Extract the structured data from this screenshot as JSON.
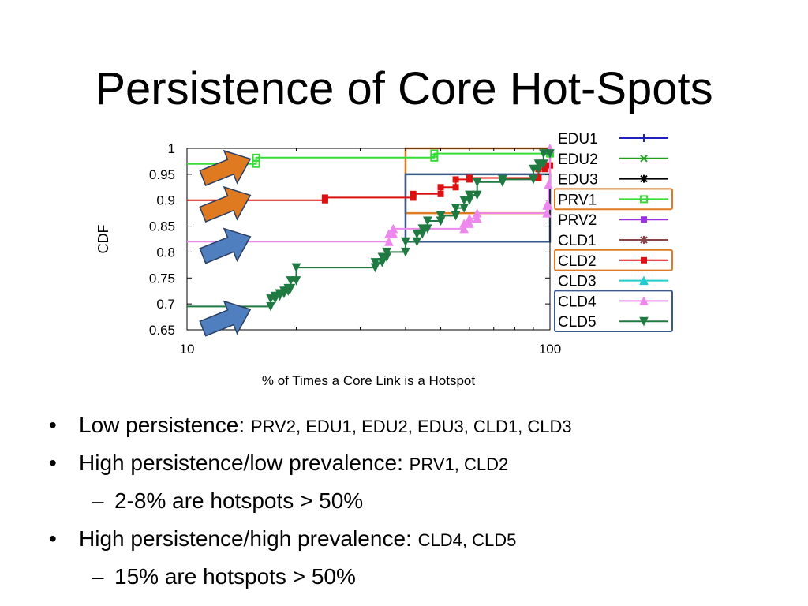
{
  "slide": {
    "title": "Persistence of Core Hot-Spots"
  },
  "chart_data": {
    "type": "line",
    "title": "",
    "xlabel": "% of Times a Core Link is a Hotspot",
    "ylabel": "CDF",
    "xscale": "log",
    "xlim": [
      10,
      100
    ],
    "ylim": [
      0.65,
      1.0
    ],
    "xticks": [
      "10",
      "100"
    ],
    "yticks": [
      "0.65",
      "0.7",
      "0.75",
      "0.8",
      "0.85",
      "0.9",
      "0.95",
      "1"
    ],
    "grid": false,
    "legend_position": "right",
    "series": [
      {
        "name": "EDU1",
        "color": "#2020c0",
        "marker": "plus",
        "points": []
      },
      {
        "name": "EDU2",
        "color": "#20a020",
        "marker": "x",
        "points": []
      },
      {
        "name": "EDU3",
        "color": "#000000",
        "marker": "star",
        "points": []
      },
      {
        "name": "PRV1",
        "color": "#33dd33",
        "marker": "square-open",
        "points": [
          [
            10,
            0.97
          ],
          [
            15.5,
            0.97
          ],
          [
            15.5,
            0.982
          ],
          [
            48,
            0.982
          ],
          [
            48,
            0.99
          ],
          [
            100,
            0.99
          ]
        ]
      },
      {
        "name": "PRV2",
        "color": "#9933dd",
        "marker": "square",
        "points": []
      },
      {
        "name": "CLD1",
        "color": "#884444",
        "marker": "star",
        "points": []
      },
      {
        "name": "CLD2",
        "color": "#dd1111",
        "marker": "square",
        "points": [
          [
            10,
            0.9
          ],
          [
            24,
            0.9
          ],
          [
            24,
            0.905
          ],
          [
            42,
            0.905
          ],
          [
            42,
            0.912
          ],
          [
            50,
            0.912
          ],
          [
            50,
            0.925
          ],
          [
            55,
            0.925
          ],
          [
            55,
            0.94
          ],
          [
            60,
            0.94
          ],
          [
            60,
            0.943
          ],
          [
            93,
            0.943
          ],
          [
            93,
            0.96
          ],
          [
            97,
            0.96
          ],
          [
            97,
            0.967
          ],
          [
            100,
            0.967
          ]
        ]
      },
      {
        "name": "CLD3",
        "color": "#22cccc",
        "marker": "triangle-up",
        "points": []
      },
      {
        "name": "CLD4",
        "color": "#ee88ee",
        "marker": "triangle-up",
        "points": [
          [
            10,
            0.82
          ],
          [
            36,
            0.82
          ],
          [
            36,
            0.835
          ],
          [
            37,
            0.835
          ],
          [
            37,
            0.845
          ],
          [
            58,
            0.845
          ],
          [
            58,
            0.855
          ],
          [
            60,
            0.855
          ],
          [
            60,
            0.865
          ],
          [
            63,
            0.865
          ],
          [
            63,
            0.875
          ],
          [
            98,
            0.875
          ],
          [
            98,
            0.89
          ],
          [
            99,
            0.89
          ],
          [
            99,
            0.93
          ],
          [
            100,
            0.93
          ],
          [
            100,
            1.0
          ]
        ]
      },
      {
        "name": "CLD5",
        "color": "#1e7a40",
        "marker": "triangle-down",
        "points": [
          [
            10,
            0.695
          ],
          [
            17,
            0.695
          ],
          [
            17,
            0.71
          ],
          [
            17.5,
            0.71
          ],
          [
            17.5,
            0.715
          ],
          [
            18,
            0.715
          ],
          [
            18,
            0.72
          ],
          [
            18.5,
            0.72
          ],
          [
            18.5,
            0.725
          ],
          [
            19,
            0.725
          ],
          [
            19,
            0.73
          ],
          [
            19.3,
            0.73
          ],
          [
            19.3,
            0.745
          ],
          [
            20,
            0.745
          ],
          [
            20,
            0.77
          ],
          [
            33,
            0.77
          ],
          [
            33,
            0.78
          ],
          [
            34.5,
            0.78
          ],
          [
            34.5,
            0.79
          ],
          [
            35.5,
            0.79
          ],
          [
            35.5,
            0.8
          ],
          [
            40,
            0.8
          ],
          [
            40,
            0.82
          ],
          [
            43,
            0.82
          ],
          [
            43,
            0.835
          ],
          [
            44.5,
            0.835
          ],
          [
            44.5,
            0.845
          ],
          [
            46,
            0.845
          ],
          [
            46,
            0.86
          ],
          [
            50,
            0.86
          ],
          [
            50,
            0.87
          ],
          [
            55,
            0.87
          ],
          [
            55,
            0.885
          ],
          [
            58,
            0.885
          ],
          [
            58,
            0.9
          ],
          [
            60,
            0.9
          ],
          [
            60,
            0.91
          ],
          [
            63,
            0.91
          ],
          [
            63,
            0.935
          ],
          [
            74,
            0.935
          ],
          [
            74,
            0.94
          ],
          [
            90,
            0.94
          ],
          [
            90,
            0.96
          ],
          [
            93,
            0.96
          ],
          [
            93,
            0.97
          ],
          [
            96,
            0.97
          ],
          [
            96,
            0.99
          ],
          [
            100,
            0.99
          ]
        ]
      }
    ],
    "legend_highlights": [
      {
        "series": [
          "PRV1"
        ],
        "color": "#e07a20"
      },
      {
        "series": [
          "CLD2"
        ],
        "color": "#e07a20"
      },
      {
        "series": [
          "CLD4",
          "CLD5"
        ],
        "color": "#3c5a8a"
      }
    ],
    "annotations": [
      {
        "kind": "box",
        "x": [
          40,
          100
        ],
        "y": [
          0.875,
          1.0
        ],
        "color": "#e07a20"
      },
      {
        "kind": "box",
        "x": [
          40,
          100
        ],
        "y": [
          0.82,
          0.95
        ],
        "color": "#3c5a8a"
      },
      {
        "kind": "arrow",
        "target": "PRV1",
        "color": "#e07a20"
      },
      {
        "kind": "arrow",
        "target": "CLD2",
        "color": "#e07a20"
      },
      {
        "kind": "arrow",
        "target": "CLD4",
        "color": "#4f7fbf"
      },
      {
        "kind": "arrow",
        "target": "CLD5",
        "color": "#4f7fbf"
      }
    ]
  },
  "bullets": [
    {
      "level": 1,
      "marker": "•",
      "text": "Low persistence: ",
      "detail": "PRV2, EDU1, EDU2, EDU3, CLD1, CLD3"
    },
    {
      "level": 1,
      "marker": "•",
      "text": "High persistence/low prevalence: ",
      "detail": "PRV1, CLD2"
    },
    {
      "level": 2,
      "marker": "–",
      "text": "2-8% are hotspots > 50%",
      "detail": ""
    },
    {
      "level": 1,
      "marker": "•",
      "text": "High persistence/high prevalence: ",
      "detail": "CLD4, CLD5"
    },
    {
      "level": 2,
      "marker": "–",
      "text": "15% are hotspots > 50%",
      "detail": ""
    }
  ]
}
